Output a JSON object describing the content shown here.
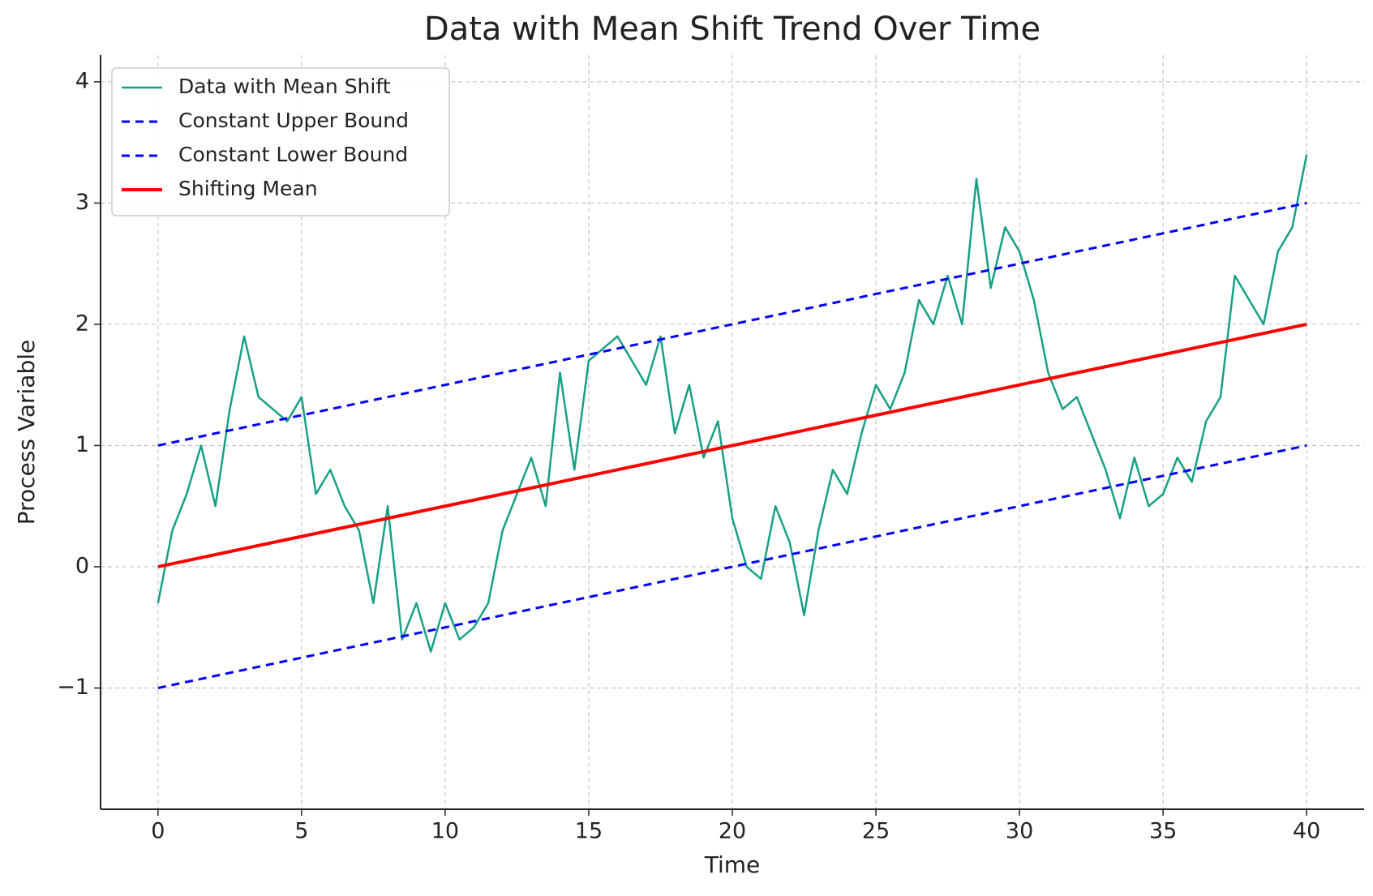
{
  "chart_data": {
    "type": "line",
    "title": "Data with Mean Shift Trend Over Time",
    "x_label": "Time",
    "y_label": "Process Variable",
    "xlim": [
      -2,
      42
    ],
    "ylim": [
      -2,
      4.22
    ],
    "xticks": [
      0,
      5,
      10,
      15,
      20,
      25,
      30,
      35,
      40
    ],
    "yticks": [
      {
        "value": -1,
        "label": "−1"
      },
      0,
      1,
      2,
      3,
      4
    ],
    "grid": true,
    "legend": "upper left",
    "series": [
      {
        "name": "Data with Mean Shift",
        "color": "#16a085",
        "style": "solid",
        "width": 2.5,
        "x": [
          0,
          0.5,
          1,
          1.5,
          2,
          2.5,
          3,
          3.5,
          4,
          4.5,
          5,
          5.5,
          6,
          6.5,
          7,
          7.5,
          8,
          8.5,
          9,
          9.5,
          10,
          10.5,
          11,
          11.5,
          12,
          12.5,
          13,
          13.5,
          14,
          14.5,
          15,
          15.5,
          16,
          16.5,
          17,
          17.5,
          18,
          18.5,
          19,
          19.5,
          20,
          20.5,
          21,
          21.5,
          22,
          22.5,
          23,
          23.5,
          24,
          24.5,
          25,
          25.5,
          26,
          26.5,
          27,
          27.5,
          28,
          28.5,
          29,
          29.5,
          30,
          30.5,
          31,
          31.5,
          32,
          32.5,
          33,
          33.5,
          34,
          34.5,
          35,
          35.5,
          36,
          36.5,
          37,
          37.5,
          38,
          38.5,
          39,
          39.5,
          40
        ],
        "values": [
          -0.3,
          0.3,
          0.6,
          1.0,
          0.5,
          1.3,
          1.9,
          1.4,
          1.3,
          1.2,
          1.4,
          0.6,
          0.8,
          0.5,
          0.3,
          -0.3,
          0.5,
          -0.6,
          -0.3,
          -0.7,
          -0.3,
          -0.6,
          -0.5,
          -0.3,
          0.3,
          0.6,
          0.9,
          0.5,
          1.6,
          0.8,
          1.7,
          1.8,
          1.9,
          1.7,
          1.5,
          1.9,
          1.1,
          1.5,
          0.9,
          1.2,
          0.4,
          0.0,
          -0.1,
          0.5,
          0.2,
          -0.4,
          0.3,
          0.8,
          0.6,
          1.1,
          1.5,
          1.3,
          1.6,
          2.2,
          2.0,
          2.4,
          2.0,
          3.2,
          2.3,
          2.8,
          2.6,
          2.2,
          1.6,
          1.3,
          1.4,
          1.1,
          0.8,
          0.4,
          0.9,
          0.5,
          0.6,
          0.9,
          0.7,
          1.2,
          1.4,
          2.4,
          2.2,
          2.0,
          2.6,
          2.8,
          3.4
        ]
      },
      {
        "name": "Constant Upper Bound",
        "color": "#0000ff",
        "style": "dashed",
        "width": 3,
        "x": [
          0,
          40
        ],
        "values": [
          1,
          3
        ]
      },
      {
        "name": "Constant Lower Bound",
        "color": "#0000ff",
        "style": "dashed",
        "width": 3,
        "x": [
          0,
          40
        ],
        "values": [
          -1,
          1
        ]
      },
      {
        "name": "Shifting Mean",
        "color": "#ff0000",
        "style": "solid",
        "width": 4,
        "x": [
          0,
          40
        ],
        "values": [
          0,
          2
        ]
      }
    ]
  }
}
